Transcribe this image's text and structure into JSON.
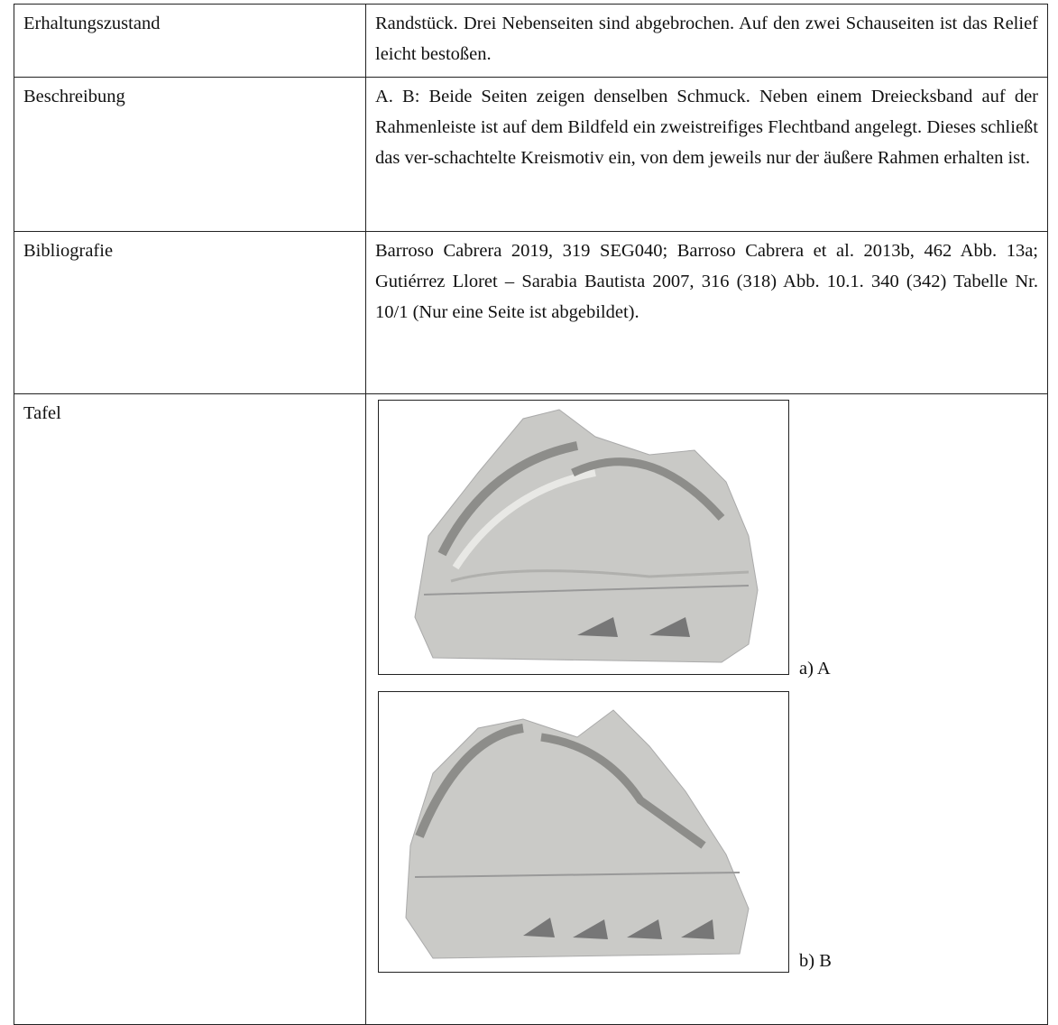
{
  "table": {
    "rows": [
      {
        "label": "Erhaltungszustand",
        "text": "Randstück. Drei Nebenseiten sind abgebrochen. Auf den zwei Schauseiten ist das Relief leicht bestoßen."
      },
      {
        "label": "Beschreibung",
        "text": "A. B: Beide Seiten zeigen denselben Schmuck. Neben einem Dreiecksband auf der Rahmenleiste ist auf dem Bildfeld ein zweistreifiges Flechtband angelegt. Dieses schließt das ver-schachtelte Kreismotiv ein, von dem jeweils nur der äußere Rahmen erhalten ist."
      },
      {
        "label": "Bibliografie",
        "text": "Barroso Cabrera 2019, 319 SEG040; Barroso Cabrera et al. 2013b, 462 Abb. 13a; Gutiérrez Lloret – Sarabia Bautista 2007, 316 (318) Abb. 10.1. 340 (342) Tabelle Nr. 10/1 (Nur eine Seite ist abgebildet)."
      },
      {
        "label": "Tafel",
        "figures": [
          {
            "caption": "a) A"
          },
          {
            "caption": "b) B"
          }
        ]
      }
    ]
  }
}
